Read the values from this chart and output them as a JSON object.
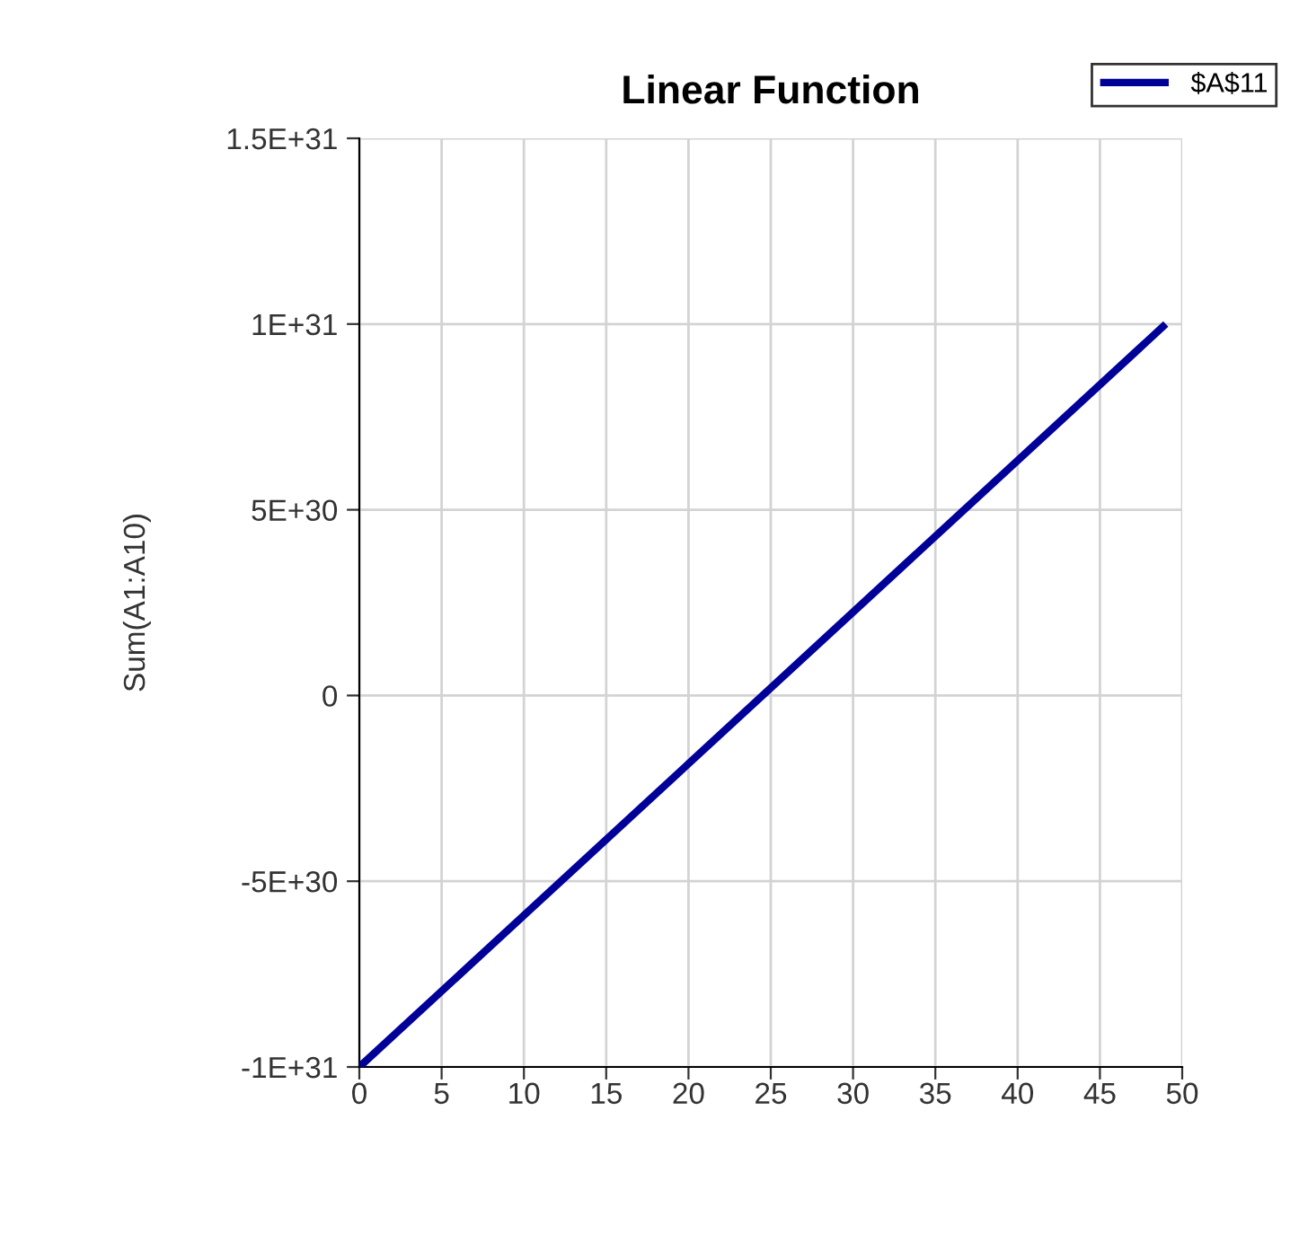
{
  "chart_data": {
    "type": "line",
    "title": "Linear Function",
    "ylabel": "Sum(A1:A10)",
    "series": [
      {
        "name": "$A$11",
        "color": "#000099",
        "x": [
          0,
          49
        ],
        "values": [
          -1e+31,
          1e+31
        ]
      }
    ],
    "xlim": [
      0,
      50
    ],
    "xticks": [
      0,
      5,
      10,
      15,
      20,
      25,
      30,
      35,
      40,
      45,
      50
    ],
    "ylim": [
      -1e+31,
      1.5e+31
    ],
    "yticks": [
      {
        "value": -1e+31,
        "label": "-1E+31"
      },
      {
        "value": -5e+30,
        "label": "-5E+30"
      },
      {
        "value": 0,
        "label": "0"
      },
      {
        "value": 5e+30,
        "label": "5E+30"
      },
      {
        "value": 1e+31,
        "label": "1E+31"
      },
      {
        "value": 1.5e+31,
        "label": "1.5E+31"
      }
    ],
    "grid": true,
    "legend": "top right",
    "marker": "none",
    "line_style": "solid"
  }
}
